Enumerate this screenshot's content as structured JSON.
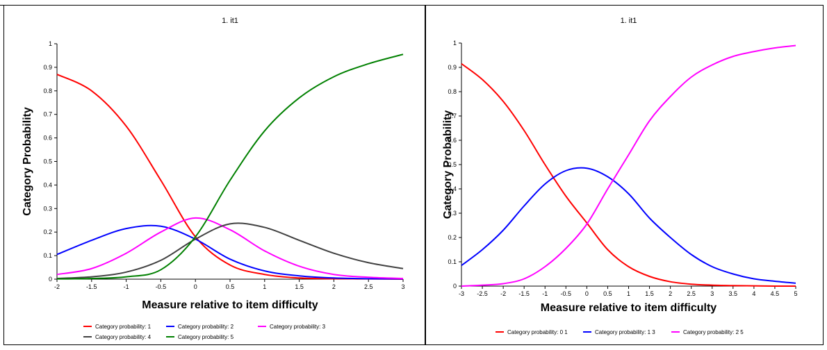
{
  "chart_data": [
    {
      "type": "line",
      "title": "1. it1",
      "xlabel": "Measure relative to item difficulty",
      "ylabel": "Category Probability",
      "xlim": [
        -2,
        3
      ],
      "ylim": [
        0,
        1
      ],
      "x_ticks": [
        "-2",
        "-1.5",
        "-1",
        "-0.5",
        "0",
        "0.5",
        "1",
        "1.5",
        "2",
        "2.5",
        "3"
      ],
      "y_ticks": [
        "0",
        "0.1",
        "0.2",
        "0.3",
        "0.4",
        "0.5",
        "0.6",
        "0.7",
        "0.8",
        "0.9",
        "1"
      ],
      "grid": false,
      "legend_position": "bottom",
      "x": [
        -2,
        -1.5,
        -1,
        -0.5,
        0,
        0.5,
        1,
        1.5,
        2,
        2.5,
        3
      ],
      "series": [
        {
          "name": "Category probability: 1",
          "color": "#ff0000",
          "values": [
            0.87,
            0.8,
            0.65,
            0.42,
            0.18,
            0.06,
            0.02,
            0.005,
            0.002,
            0.001,
            0.0
          ]
        },
        {
          "name": "Category probability: 2",
          "color": "#0000ff",
          "values": [
            0.105,
            0.165,
            0.215,
            0.225,
            0.17,
            0.085,
            0.035,
            0.014,
            0.005,
            0.002,
            0.001
          ]
        },
        {
          "name": "Category probability: 3",
          "color": "#ff00ff",
          "values": [
            0.02,
            0.045,
            0.11,
            0.2,
            0.26,
            0.21,
            0.12,
            0.055,
            0.02,
            0.008,
            0.003
          ]
        },
        {
          "name": "Category probability: 4",
          "color": "#404040",
          "values": [
            0.003,
            0.01,
            0.03,
            0.08,
            0.17,
            0.235,
            0.22,
            0.165,
            0.11,
            0.07,
            0.045
          ]
        },
        {
          "name": "Category probability: 5",
          "color": "#008000",
          "values": [
            0.001,
            0.003,
            0.01,
            0.04,
            0.18,
            0.42,
            0.63,
            0.77,
            0.86,
            0.915,
            0.955
          ]
        }
      ]
    },
    {
      "type": "line",
      "title": "1. it1",
      "xlabel": "Measure relative to item difficulty",
      "ylabel": "Category Probability",
      "xlim": [
        -3,
        5
      ],
      "ylim": [
        0,
        1
      ],
      "x_ticks": [
        "-3",
        "-2.5",
        "-2",
        "-1.5",
        "-1",
        "-0.5",
        "0",
        "0.5",
        "1",
        "1.5",
        "2",
        "2.5",
        "3",
        "3.5",
        "4",
        "4.5",
        "5"
      ],
      "y_ticks": [
        "0",
        "0.1",
        "0.2",
        "0.3",
        "0.4",
        "0.5",
        "0.6",
        "0.7",
        "0.8",
        "0.9",
        "1"
      ],
      "grid": false,
      "legend_position": "bottom",
      "x": [
        -3,
        -2.5,
        -2,
        -1.5,
        -1,
        -0.5,
        0,
        0.5,
        1,
        1.5,
        2,
        2.5,
        3,
        3.5,
        4,
        4.5,
        5
      ],
      "series": [
        {
          "name": "Category probability: 0 1",
          "color": "#ff0000",
          "values": [
            0.915,
            0.85,
            0.76,
            0.64,
            0.5,
            0.37,
            0.26,
            0.15,
            0.08,
            0.04,
            0.018,
            0.008,
            0.004,
            0.002,
            0.001,
            0.0,
            0.0
          ]
        },
        {
          "name": "Category probability: 1 3",
          "color": "#0000ff",
          "values": [
            0.085,
            0.15,
            0.23,
            0.33,
            0.42,
            0.475,
            0.485,
            0.45,
            0.38,
            0.28,
            0.2,
            0.13,
            0.08,
            0.05,
            0.03,
            0.02,
            0.012
          ]
        },
        {
          "name": "Category probability: 2 5",
          "color": "#ff00ff",
          "values": [
            0.0,
            0.004,
            0.01,
            0.03,
            0.08,
            0.155,
            0.255,
            0.4,
            0.54,
            0.68,
            0.78,
            0.86,
            0.91,
            0.945,
            0.965,
            0.98,
            0.99
          ]
        }
      ]
    }
  ]
}
